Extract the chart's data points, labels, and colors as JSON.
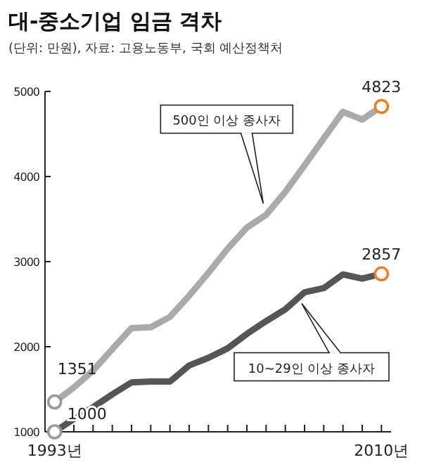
{
  "chart_data": {
    "type": "line",
    "title": "대-중소기업 임금 격차",
    "subtitle": "(단위: 만원), 자료: 고용노동부, 국회 예산정책처",
    "x": [
      1993,
      1994,
      1995,
      1996,
      1997,
      1998,
      1999,
      2000,
      2001,
      2002,
      2003,
      2004,
      2005,
      2006,
      2007,
      2008,
      2009,
      2010
    ],
    "series": [
      {
        "name": "500인 이상 종사자",
        "color": "#aaaaaa",
        "values": [
          1351,
          1520,
          1720,
          1970,
          2220,
          2230,
          2350,
          2600,
          2870,
          3150,
          3400,
          3550,
          3820,
          4130,
          4450,
          4760,
          4670,
          4823
        ],
        "value_labels": [
          "1351",
          null,
          null,
          null,
          null,
          null,
          null,
          null,
          null,
          null,
          null,
          null,
          null,
          null,
          null,
          null,
          null,
          "4823"
        ]
      },
      {
        "name": "10~29인 이상 종사자",
        "color": "#555555",
        "values": [
          1000,
          1150,
          1290,
          1440,
          1580,
          1590,
          1590,
          1780,
          1870,
          1980,
          2150,
          2300,
          2440,
          2640,
          2690,
          2850,
          2800,
          2857
        ],
        "value_labels": [
          "1000",
          null,
          null,
          null,
          null,
          null,
          null,
          null,
          null,
          null,
          null,
          null,
          null,
          null,
          null,
          null,
          null,
          "2857"
        ]
      }
    ],
    "xlim": [
      1992.5,
      2010.5
    ],
    "ylim": [
      1000,
      5000
    ],
    "xticks": [
      {
        "value": 1993,
        "label": "1993년"
      },
      {
        "value": 1994,
        "label": null
      },
      {
        "value": 1995,
        "label": null
      },
      {
        "value": 1996,
        "label": null
      },
      {
        "value": 1997,
        "label": null
      },
      {
        "value": 1998,
        "label": null
      },
      {
        "value": 1999,
        "label": null
      },
      {
        "value": 2000,
        "label": null
      },
      {
        "value": 2001,
        "label": null
      },
      {
        "value": 2002,
        "label": null
      },
      {
        "value": 2003,
        "label": null
      },
      {
        "value": 2004,
        "label": null
      },
      {
        "value": 2005,
        "label": null
      },
      {
        "value": 2006,
        "label": null
      },
      {
        "value": 2007,
        "label": null
      },
      {
        "value": 2008,
        "label": null
      },
      {
        "value": 2009,
        "label": null
      },
      {
        "value": 2010,
        "label": "2010년"
      }
    ],
    "yticks": [
      1000,
      2000,
      3000,
      4000,
      5000
    ],
    "grid": false
  }
}
